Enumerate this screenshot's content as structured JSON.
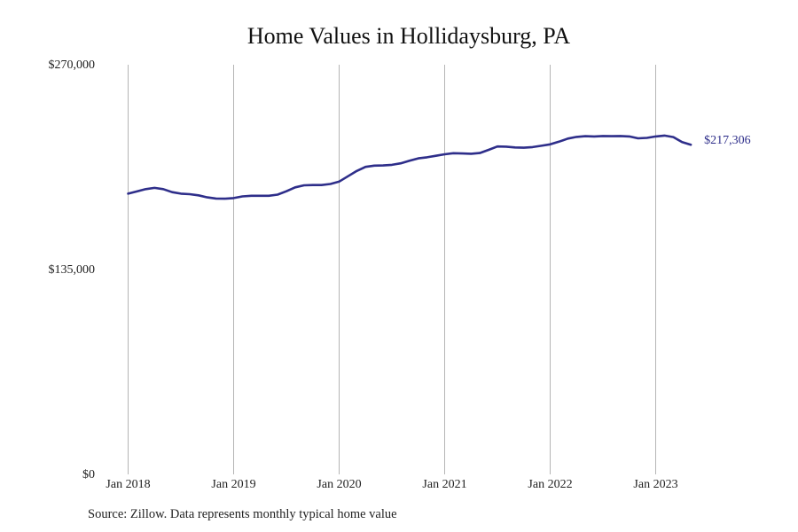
{
  "chart_data": {
    "type": "line",
    "title": "Home Values in Hollidaysburg, PA",
    "xlabel": "",
    "ylabel": "",
    "ylim": [
      0,
      270000
    ],
    "y_ticks": [
      {
        "value": 0,
        "label": "$0"
      },
      {
        "value": 135000,
        "label": "$135,000"
      },
      {
        "value": 270000,
        "label": "$270,000"
      }
    ],
    "x_ticks": [
      {
        "value": 2018.0,
        "label": "Jan 2018"
      },
      {
        "value": 2019.0,
        "label": "Jan 2019"
      },
      {
        "value": 2020.0,
        "label": "Jan 2020"
      },
      {
        "value": 2021.0,
        "label": "Jan 2021"
      },
      {
        "value": 2022.0,
        "label": "Jan 2022"
      },
      {
        "value": 2023.0,
        "label": "Jan 2023"
      }
    ],
    "grid": "vertical",
    "line_color": "#2e2e8a",
    "end_label": "$217,306",
    "series": [
      {
        "x": [
          2018.0,
          2018.083,
          2018.167,
          2018.25,
          2018.333,
          2018.417,
          2018.5,
          2018.583,
          2018.667,
          2018.75,
          2018.833,
          2018.917,
          2019.0,
          2019.083,
          2019.167,
          2019.25,
          2019.333,
          2019.417,
          2019.5,
          2019.583,
          2019.667,
          2019.75,
          2019.833,
          2019.917,
          2020.0,
          2020.083,
          2020.167,
          2020.25,
          2020.333,
          2020.417,
          2020.5,
          2020.583,
          2020.667,
          2020.75,
          2020.833,
          2020.917,
          2021.0,
          2021.083,
          2021.167,
          2021.25,
          2021.333,
          2021.417,
          2021.5,
          2021.583,
          2021.667,
          2021.75,
          2021.833,
          2021.917,
          2022.0,
          2022.083,
          2022.167,
          2022.25,
          2022.333,
          2022.417,
          2022.5,
          2022.583,
          2022.667,
          2022.75,
          2022.833,
          2022.917,
          2023.0,
          2023.083,
          2023.167,
          2023.25,
          2023.333
        ],
        "y": [
          185000,
          186500,
          188000,
          188800,
          188000,
          186000,
          185000,
          184700,
          183900,
          182600,
          181800,
          181700,
          182100,
          183200,
          183600,
          183600,
          183600,
          184400,
          186600,
          189200,
          190500,
          190700,
          190700,
          191400,
          193000,
          196500,
          200000,
          202700,
          203500,
          203600,
          204000,
          205000,
          206700,
          208300,
          209000,
          210000,
          211000,
          211700,
          211500,
          211300,
          211800,
          213900,
          216100,
          216000,
          215500,
          215300,
          215700,
          216600,
          217500,
          219300,
          221300,
          222400,
          222900,
          222700,
          223000,
          222900,
          223000,
          222700,
          221500,
          221800,
          222700,
          223300,
          222300,
          219000,
          217306
        ]
      }
    ]
  },
  "source_note": "Source: Zillow. Data represents monthly typical home value"
}
